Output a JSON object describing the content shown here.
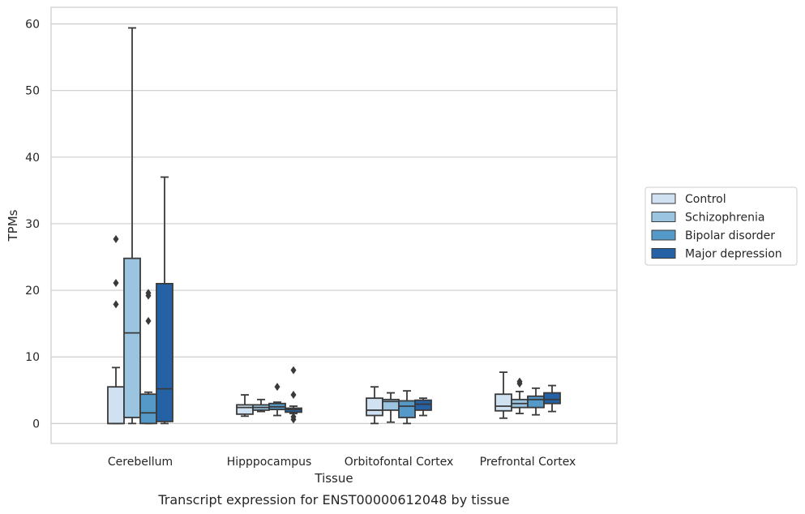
{
  "caption": "Transcript expression for ENST00000612048 by tissue",
  "chart_data": {
    "type": "box",
    "xlabel": "Tissue",
    "ylabel": "TPMs",
    "ylim": [
      -3,
      62.5
    ],
    "yticks": [
      0,
      10,
      20,
      30,
      40,
      50,
      60
    ],
    "grid": "horizontal",
    "legend_position": "right",
    "categories": [
      "Cerebellum",
      "Hipppocampus",
      "Orbitofontal Cortex",
      "Prefrontal Cortex"
    ],
    "series": [
      {
        "name": "Control",
        "color": "#d0e1f1",
        "boxes": [
          {
            "q1": 0,
            "median": 0,
            "q3": 5.5,
            "whislo": 0,
            "whishi": 8.4,
            "fliers": [
              17.9,
              21.1,
              27.7
            ]
          },
          {
            "q1": 1.4,
            "median": 2.4,
            "q3": 2.8,
            "whislo": 1.1,
            "whishi": 4.3,
            "fliers": []
          },
          {
            "q1": 1.2,
            "median": 2.0,
            "q3": 3.8,
            "whislo": 0.0,
            "whishi": 5.5,
            "fliers": []
          },
          {
            "q1": 1.9,
            "median": 2.6,
            "q3": 4.4,
            "whislo": 0.8,
            "whishi": 7.7,
            "fliers": []
          }
        ]
      },
      {
        "name": "Schizophrenia",
        "color": "#9ac4e0",
        "boxes": [
          {
            "q1": 0.9,
            "median": 13.6,
            "q3": 24.8,
            "whislo": 0,
            "whishi": 59.4,
            "fliers": []
          },
          {
            "q1": 2.0,
            "median": 2.4,
            "q3": 2.8,
            "whislo": 1.8,
            "whishi": 3.6,
            "fliers": []
          },
          {
            "q1": 2.0,
            "median": 3.3,
            "q3": 3.6,
            "whislo": 0.2,
            "whishi": 4.6,
            "fliers": []
          },
          {
            "q1": 2.4,
            "median": 3.0,
            "q3": 3.6,
            "whislo": 1.5,
            "whishi": 4.8,
            "fliers": [
              6.0,
              6.3
            ]
          }
        ]
      },
      {
        "name": "Bipolar disorder",
        "color": "#5599c8",
        "boxes": [
          {
            "q1": 0,
            "median": 1.6,
            "q3": 4.4,
            "whislo": 0,
            "whishi": 4.7,
            "fliers": [
              15.4,
              19.2,
              19.6
            ]
          },
          {
            "q1": 2.1,
            "median": 2.5,
            "q3": 3.0,
            "whislo": 1.2,
            "whishi": 3.2,
            "fliers": [
              5.5
            ]
          },
          {
            "q1": 0.9,
            "median": 2.6,
            "q3": 3.4,
            "whislo": 0.0,
            "whishi": 4.9,
            "fliers": []
          },
          {
            "q1": 2.4,
            "median": 3.6,
            "q3": 4.1,
            "whislo": 1.3,
            "whishi": 5.3,
            "fliers": []
          }
        ]
      },
      {
        "name": "Major depression",
        "color": "#2462a5",
        "boxes": [
          {
            "q1": 0.3,
            "median": 5.2,
            "q3": 21.0,
            "whislo": 0,
            "whishi": 37.0,
            "fliers": []
          },
          {
            "q1": 1.7,
            "median": 2.1,
            "q3": 2.3,
            "whislo": 1.5,
            "whishi": 2.6,
            "fliers": [
              0.6,
              1.0,
              4.3,
              8.0
            ]
          },
          {
            "q1": 2.0,
            "median": 2.9,
            "q3": 3.5,
            "whislo": 1.2,
            "whishi": 3.8,
            "fliers": []
          },
          {
            "q1": 3.0,
            "median": 3.6,
            "q3": 4.6,
            "whislo": 1.8,
            "whishi": 5.7,
            "fliers": []
          }
        ]
      }
    ]
  }
}
